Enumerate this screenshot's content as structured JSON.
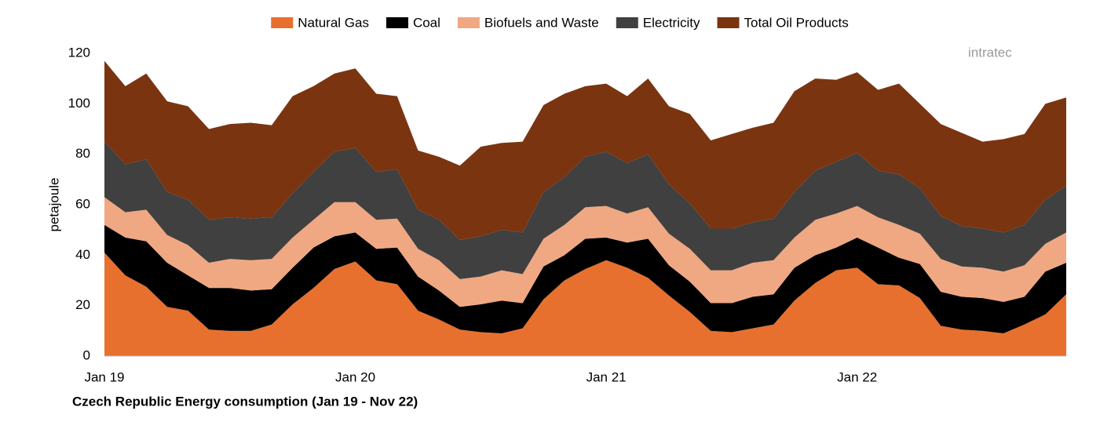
{
  "chart_data": {
    "type": "stacked-area",
    "title": "Czech Republic Energy consumption (Jan 19 - Nov 22)",
    "ylabel": "petajoule",
    "logo": "intratec",
    "categories": [
      "Jan 19",
      null,
      null,
      null,
      null,
      null,
      null,
      null,
      null,
      null,
      null,
      null,
      "Jan 20",
      null,
      null,
      null,
      null,
      null,
      null,
      null,
      null,
      null,
      null,
      null,
      "Jan 21",
      null,
      null,
      null,
      null,
      null,
      null,
      null,
      null,
      null,
      null,
      null,
      "Jan 22",
      null,
      null,
      null,
      null,
      null,
      null,
      null,
      null,
      null,
      null
    ],
    "ylim": [
      0,
      120
    ],
    "yticks": [
      0,
      20,
      40,
      60,
      80,
      100,
      120
    ],
    "grid": false,
    "legend": "top",
    "series": [
      {
        "name": "Natural Gas",
        "color": "#e8702f",
        "values": [
          41,
          32,
          27.5,
          19.5,
          18,
          10.5,
          10,
          10,
          12.5,
          20.5,
          27,
          34.5,
          37.5,
          30,
          28.5,
          18,
          14.5,
          10.5,
          9.5,
          9,
          11,
          22.5,
          30,
          34.5,
          38,
          35,
          31,
          24,
          17.5,
          10,
          9.5,
          11,
          12.5,
          22,
          29,
          34,
          35,
          28.5,
          28,
          23,
          12,
          10.5,
          10,
          9,
          12.5,
          16.5,
          24.5
        ]
      },
      {
        "name": "Coal",
        "color": "#000000",
        "values": [
          11,
          15,
          18,
          17.5,
          14,
          16.5,
          17,
          16,
          14,
          14.5,
          16,
          13,
          11.5,
          12.5,
          14.5,
          13.5,
          11.5,
          9,
          11,
          13,
          10,
          13,
          10,
          12,
          9,
          10,
          15.5,
          12,
          12,
          11,
          11.5,
          12.5,
          12,
          13,
          11,
          9,
          12,
          14.5,
          11,
          13.5,
          13.5,
          13,
          13,
          12.5,
          11,
          17,
          12.5
        ]
      },
      {
        "name": "Biofuels and Waste",
        "color": "#f0a882",
        "values": [
          11,
          10,
          12.5,
          11,
          12,
          10,
          11.5,
          12,
          12,
          12,
          11,
          13.5,
          12,
          11.5,
          11.5,
          11,
          12,
          11,
          11,
          12,
          11.5,
          11,
          12,
          12.5,
          12.5,
          11.5,
          12.5,
          12.5,
          13,
          13,
          13,
          13.5,
          13.5,
          12,
          14,
          13.5,
          12.5,
          12,
          13,
          12,
          13,
          12,
          12,
          12,
          12.5,
          11,
          12
        ]
      },
      {
        "name": "Electricity",
        "color": "#404040",
        "values": [
          22,
          19,
          20,
          17,
          18,
          17,
          16.5,
          16.5,
          16.5,
          17.5,
          19,
          20,
          21.5,
          19,
          19.5,
          15.5,
          16,
          15.5,
          16,
          16,
          16.5,
          18.5,
          19,
          20,
          21.5,
          20,
          21,
          19.5,
          18,
          16.5,
          16.5,
          16,
          16.5,
          18,
          19.5,
          20.5,
          21,
          18.5,
          20,
          18,
          17,
          16,
          15.5,
          15.5,
          16,
          17.5,
          18.5
        ]
      },
      {
        "name": "Total Oil Products",
        "color": "#7b3410",
        "values": [
          32,
          31,
          34,
          36,
          37,
          36,
          37,
          38,
          36.5,
          38.5,
          34,
          31,
          31.5,
          31,
          29,
          23.5,
          25,
          29.5,
          35.5,
          34.5,
          36,
          34.5,
          33,
          28,
          27,
          26.5,
          30,
          31,
          35.5,
          35,
          37.5,
          37.5,
          38,
          40,
          36.5,
          32.5,
          32,
          32,
          36,
          33.5,
          36.5,
          37,
          34.5,
          37,
          36,
          38,
          35
        ]
      }
    ]
  }
}
